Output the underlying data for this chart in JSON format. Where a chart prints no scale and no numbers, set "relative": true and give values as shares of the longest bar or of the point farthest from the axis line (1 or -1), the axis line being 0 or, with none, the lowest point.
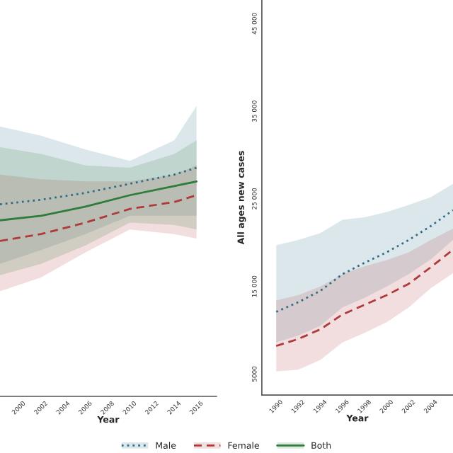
{
  "chart_data": [
    {
      "type": "line",
      "xlabel": "Year",
      "relative": true,
      "tick_labels": "x",
      "legend": "bottom",
      "grid": false,
      "xlim": [
        1998.3,
        2017.8
      ],
      "xticks": [
        2000,
        2002,
        2004,
        2006,
        2008,
        2010,
        2012,
        2014,
        2016
      ],
      "x": [
        1998.3,
        2002,
        2006,
        2010,
        2014,
        2016
      ],
      "series": [
        {
          "name": "Male",
          "color": "#2f6f86",
          "line_style": "dotted",
          "values": [
            0.84,
            0.86,
            0.89,
            0.93,
            0.97,
            1.0
          ],
          "lower": [
            0.58,
            0.64,
            0.71,
            0.79,
            0.79,
            0.79
          ],
          "upper": [
            1.18,
            1.14,
            1.08,
            1.03,
            1.12,
            1.27
          ]
        },
        {
          "name": "Female",
          "color": "#b03a3a",
          "line_style": "dashed",
          "values": [
            0.68,
            0.71,
            0.76,
            0.82,
            0.85,
            0.88
          ],
          "lower": [
            0.46,
            0.52,
            0.63,
            0.73,
            0.71,
            0.69
          ],
          "upper": [
            0.97,
            0.95,
            0.94,
            0.94,
            0.97,
            1.01
          ]
        },
        {
          "name": "Both",
          "color": "#2e7d3a",
          "line_style": "solid",
          "values": [
            0.77,
            0.79,
            0.83,
            0.88,
            0.92,
            0.94
          ],
          "lower": [
            0.53,
            0.58,
            0.66,
            0.76,
            0.75,
            0.73
          ],
          "upper": [
            1.09,
            1.06,
            1.01,
            1.0,
            1.06,
            1.12
          ]
        }
      ]
    },
    {
      "type": "line",
      "xlabel": "Year",
      "ylabel": "All ages new cases",
      "grid": false,
      "xlim": [
        1988.7,
        2006
      ],
      "xticks": [
        1990,
        1992,
        1994,
        1996,
        1998,
        2000,
        2002,
        2004
      ],
      "ylim": [
        2600,
        47700
      ],
      "yticks": [
        5000,
        {
          "value": 15000,
          "label": "15 000"
        },
        {
          "value": 25000,
          "label": "25 000"
        },
        {
          "value": 35000,
          "label": "35 000"
        },
        {
          "value": 45000,
          "label": "45 000"
        }
      ],
      "x": [
        1990,
        1992,
        1994,
        1996,
        1998,
        2000,
        2002,
        2004,
        2006
      ],
      "series": [
        {
          "name": "Male",
          "color": "#2f6f86",
          "line_style": "dotted",
          "values": [
            12100,
            13200,
            14500,
            16400,
            17700,
            18900,
            20300,
            21900,
            23700
          ],
          "lower": [
            8600,
            9400,
            10500,
            12600,
            13700,
            15000,
            16400,
            18100,
            20300
          ],
          "upper": [
            19700,
            20300,
            21100,
            22600,
            22900,
            23500,
            24300,
            25200,
            26700
          ]
        },
        {
          "name": "Female",
          "color": "#b03a3a",
          "line_style": "dashed",
          "values": [
            8200,
            9000,
            10100,
            11800,
            12900,
            14000,
            15300,
            17200,
            19200
          ],
          "lower": [
            5300,
            5500,
            6600,
            8600,
            9700,
            10900,
            12600,
            14800,
            16500
          ],
          "upper": [
            13400,
            14000,
            15000,
            16400,
            17300,
            18000,
            18900,
            20300,
            21600
          ]
        }
      ]
    }
  ]
}
